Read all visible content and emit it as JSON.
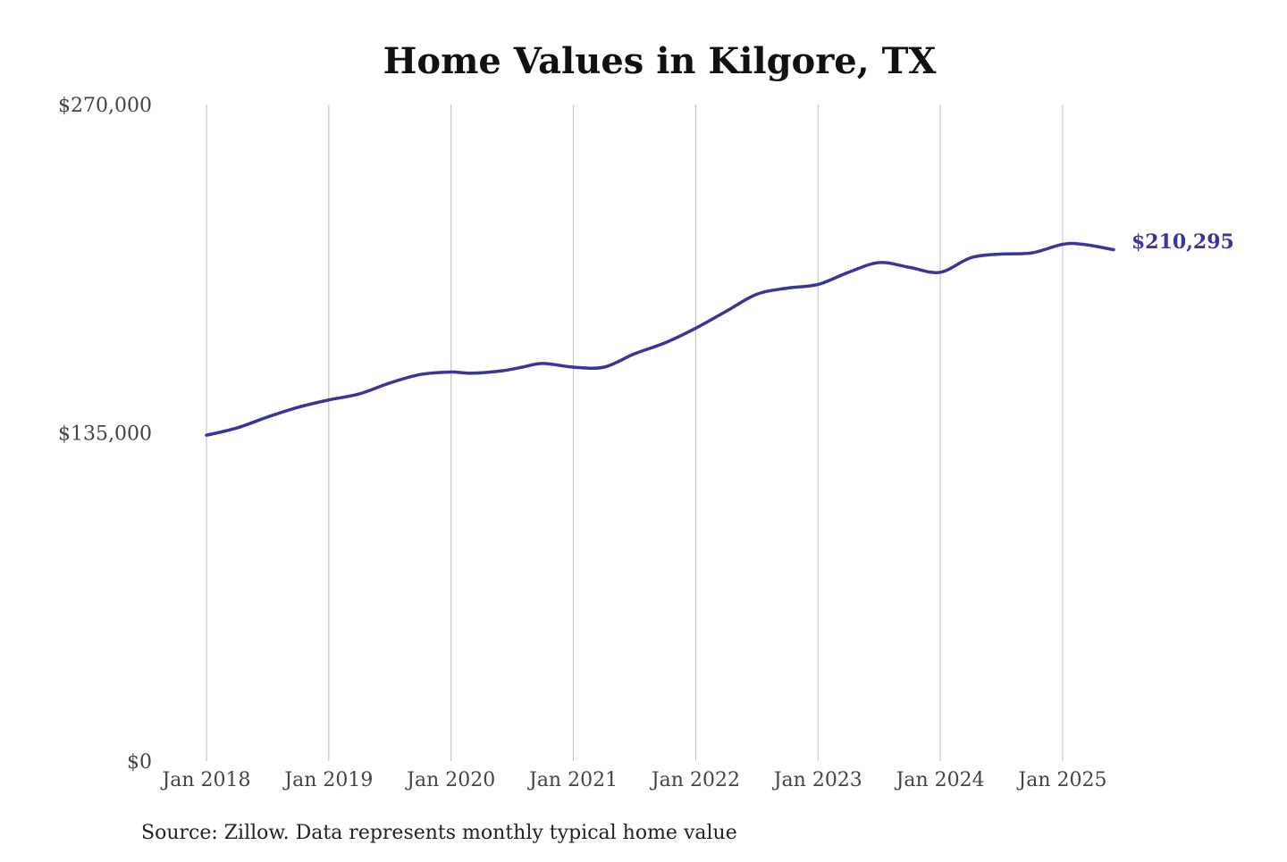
{
  "chart_data": {
    "type": "line",
    "title": "Home Values in Kilgore, TX",
    "xlabel": "",
    "ylabel": "",
    "source": "Source: Zillow. Data represents monthly typical home value",
    "ylim": [
      0,
      270000
    ],
    "y_ticks": [
      {
        "value": 0,
        "label": "$0"
      },
      {
        "value": 135000,
        "label": "$135,000"
      },
      {
        "value": 270000,
        "label": "$270,000"
      }
    ],
    "x_range": [
      "2018-01",
      "2025-06"
    ],
    "x_ticks": [
      {
        "value": "2018-01",
        "label": "Jan 2018"
      },
      {
        "value": "2019-01",
        "label": "Jan 2019"
      },
      {
        "value": "2020-01",
        "label": "Jan 2020"
      },
      {
        "value": "2021-01",
        "label": "Jan 2021"
      },
      {
        "value": "2022-01",
        "label": "Jan 2022"
      },
      {
        "value": "2023-01",
        "label": "Jan 2023"
      },
      {
        "value": "2024-01",
        "label": "Jan 2024"
      },
      {
        "value": "2025-01",
        "label": "Jan 2025"
      }
    ],
    "grid": "vertical",
    "line_color": "#3a3598",
    "end_label": "$210,295",
    "series": [
      {
        "x": [
          "2018-01",
          "2018-04",
          "2018-07",
          "2018-10",
          "2019-01",
          "2019-04",
          "2019-07",
          "2019-10",
          "2020-01",
          "2020-03",
          "2020-06",
          "2020-08",
          "2020-10",
          "2021-01",
          "2021-04",
          "2021-07",
          "2021-10",
          "2022-01",
          "2022-04",
          "2022-07",
          "2022-10",
          "2023-01",
          "2023-04",
          "2023-07",
          "2023-10",
          "2024-01",
          "2024-04",
          "2024-07",
          "2024-10",
          "2025-01",
          "2025-03",
          "2025-06"
        ],
        "values": [
          134000,
          137000,
          141500,
          145500,
          148500,
          151000,
          155500,
          159000,
          160000,
          159500,
          160500,
          162000,
          163500,
          162000,
          162000,
          167500,
          172000,
          178000,
          185000,
          192000,
          194500,
          196000,
          201000,
          205000,
          203000,
          201000,
          207000,
          208500,
          209000,
          212500,
          212500,
          210295
        ]
      }
    ]
  }
}
